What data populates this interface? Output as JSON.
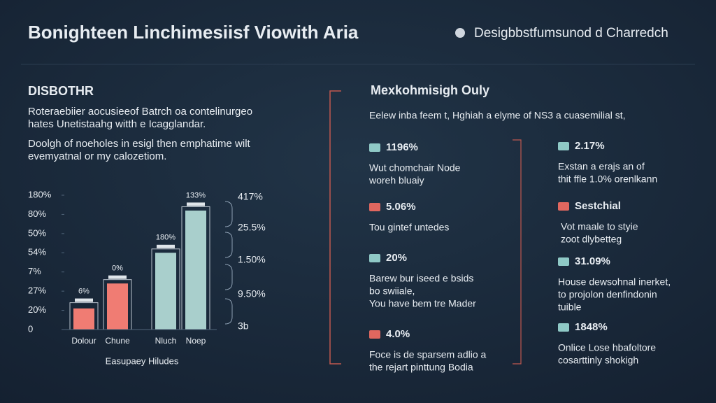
{
  "header": {
    "title": "Bonighteen Linchimesiisf Viowith Aria",
    "subtitle": "Desigbbstfumsunod d Charredch"
  },
  "left": {
    "heading": "DISBOTHR",
    "paragraphs": [
      [
        "Roteraebiier aocusieeof Batrch oa contelinurgeo",
        "hates Unetistaahg witth e Icagglandar."
      ],
      [
        "Doolgh of noeholes in esigl then emphatime wilt",
        "evemyatnal or my calozetiom."
      ]
    ]
  },
  "chart_data": {
    "type": "bar",
    "x_label": "Easupaey Hiludes",
    "categories": [
      "Dolour",
      "Chune",
      "Nluch",
      "Noep"
    ],
    "values": [
      1.1,
      2.4,
      4.0,
      6.2
    ],
    "colors": [
      "#f07c73",
      "#f07c73",
      "#a9cfcc",
      "#a9cfcc"
    ],
    "back_values": [
      1.4,
      2.6,
      4.2,
      6.4
    ],
    "back_color": "#b9c2cc",
    "bar_labels": [
      "6%",
      "0%",
      "180%",
      "133%"
    ],
    "ylim": [
      0,
      7
    ],
    "yticks": [
      0,
      {
        "value": 1,
        "label": "20%"
      },
      {
        "value": 2,
        "label": "27%"
      },
      {
        "value": 3,
        "label": "7%"
      },
      {
        "value": 4,
        "label": "54%"
      },
      {
        "value": 5,
        "label": "50%"
      },
      {
        "value": 6,
        "label": "80%"
      },
      {
        "value": 7,
        "label": "180%"
      }
    ],
    "right_labels": [
      "417%",
      "25.5%",
      "1.50%",
      "9.50%",
      "3b"
    ]
  },
  "panel": {
    "heading": "Mexkohmisigh Ouly",
    "intro": "Eelew inba feem t, Hghiah a elyme of NS3 a cuasemilial st,",
    "items": [
      {
        "stat": "1196%",
        "lines": [
          "Wut chomchair Node",
          "woreh bluaiy"
        ]
      },
      {
        "stat": "5.06%",
        "lines": [
          "Tou gintef untedes"
        ]
      },
      {
        "stat": "20%",
        "lines": [
          "Barew bur iseed e bsids",
          "bo swiiale,",
          "You have bem tre Mader"
        ]
      },
      {
        "stat": "4.0%",
        "lines": [
          "Foce is de sparsem adlio a",
          "the rejart pinttung Bodia"
        ]
      },
      {
        "stat": "2.17%",
        "lines": [
          "Exstan a erajs an of",
          "thit ffle 1.0% orenlkann"
        ]
      },
      {
        "stat": "Sestchial",
        "lines": [
          "Vot maale to styie",
          "zoot dlybetteg"
        ]
      },
      {
        "stat": "31.09%",
        "lines": [
          "House dewsohnal inerket,",
          "to projolon denfindonin",
          "tuible"
        ]
      },
      {
        "stat": "1848%",
        "lines": [
          "Onlice Lose hbafoltore",
          "cosarttinly shokigh"
        ]
      }
    ]
  }
}
